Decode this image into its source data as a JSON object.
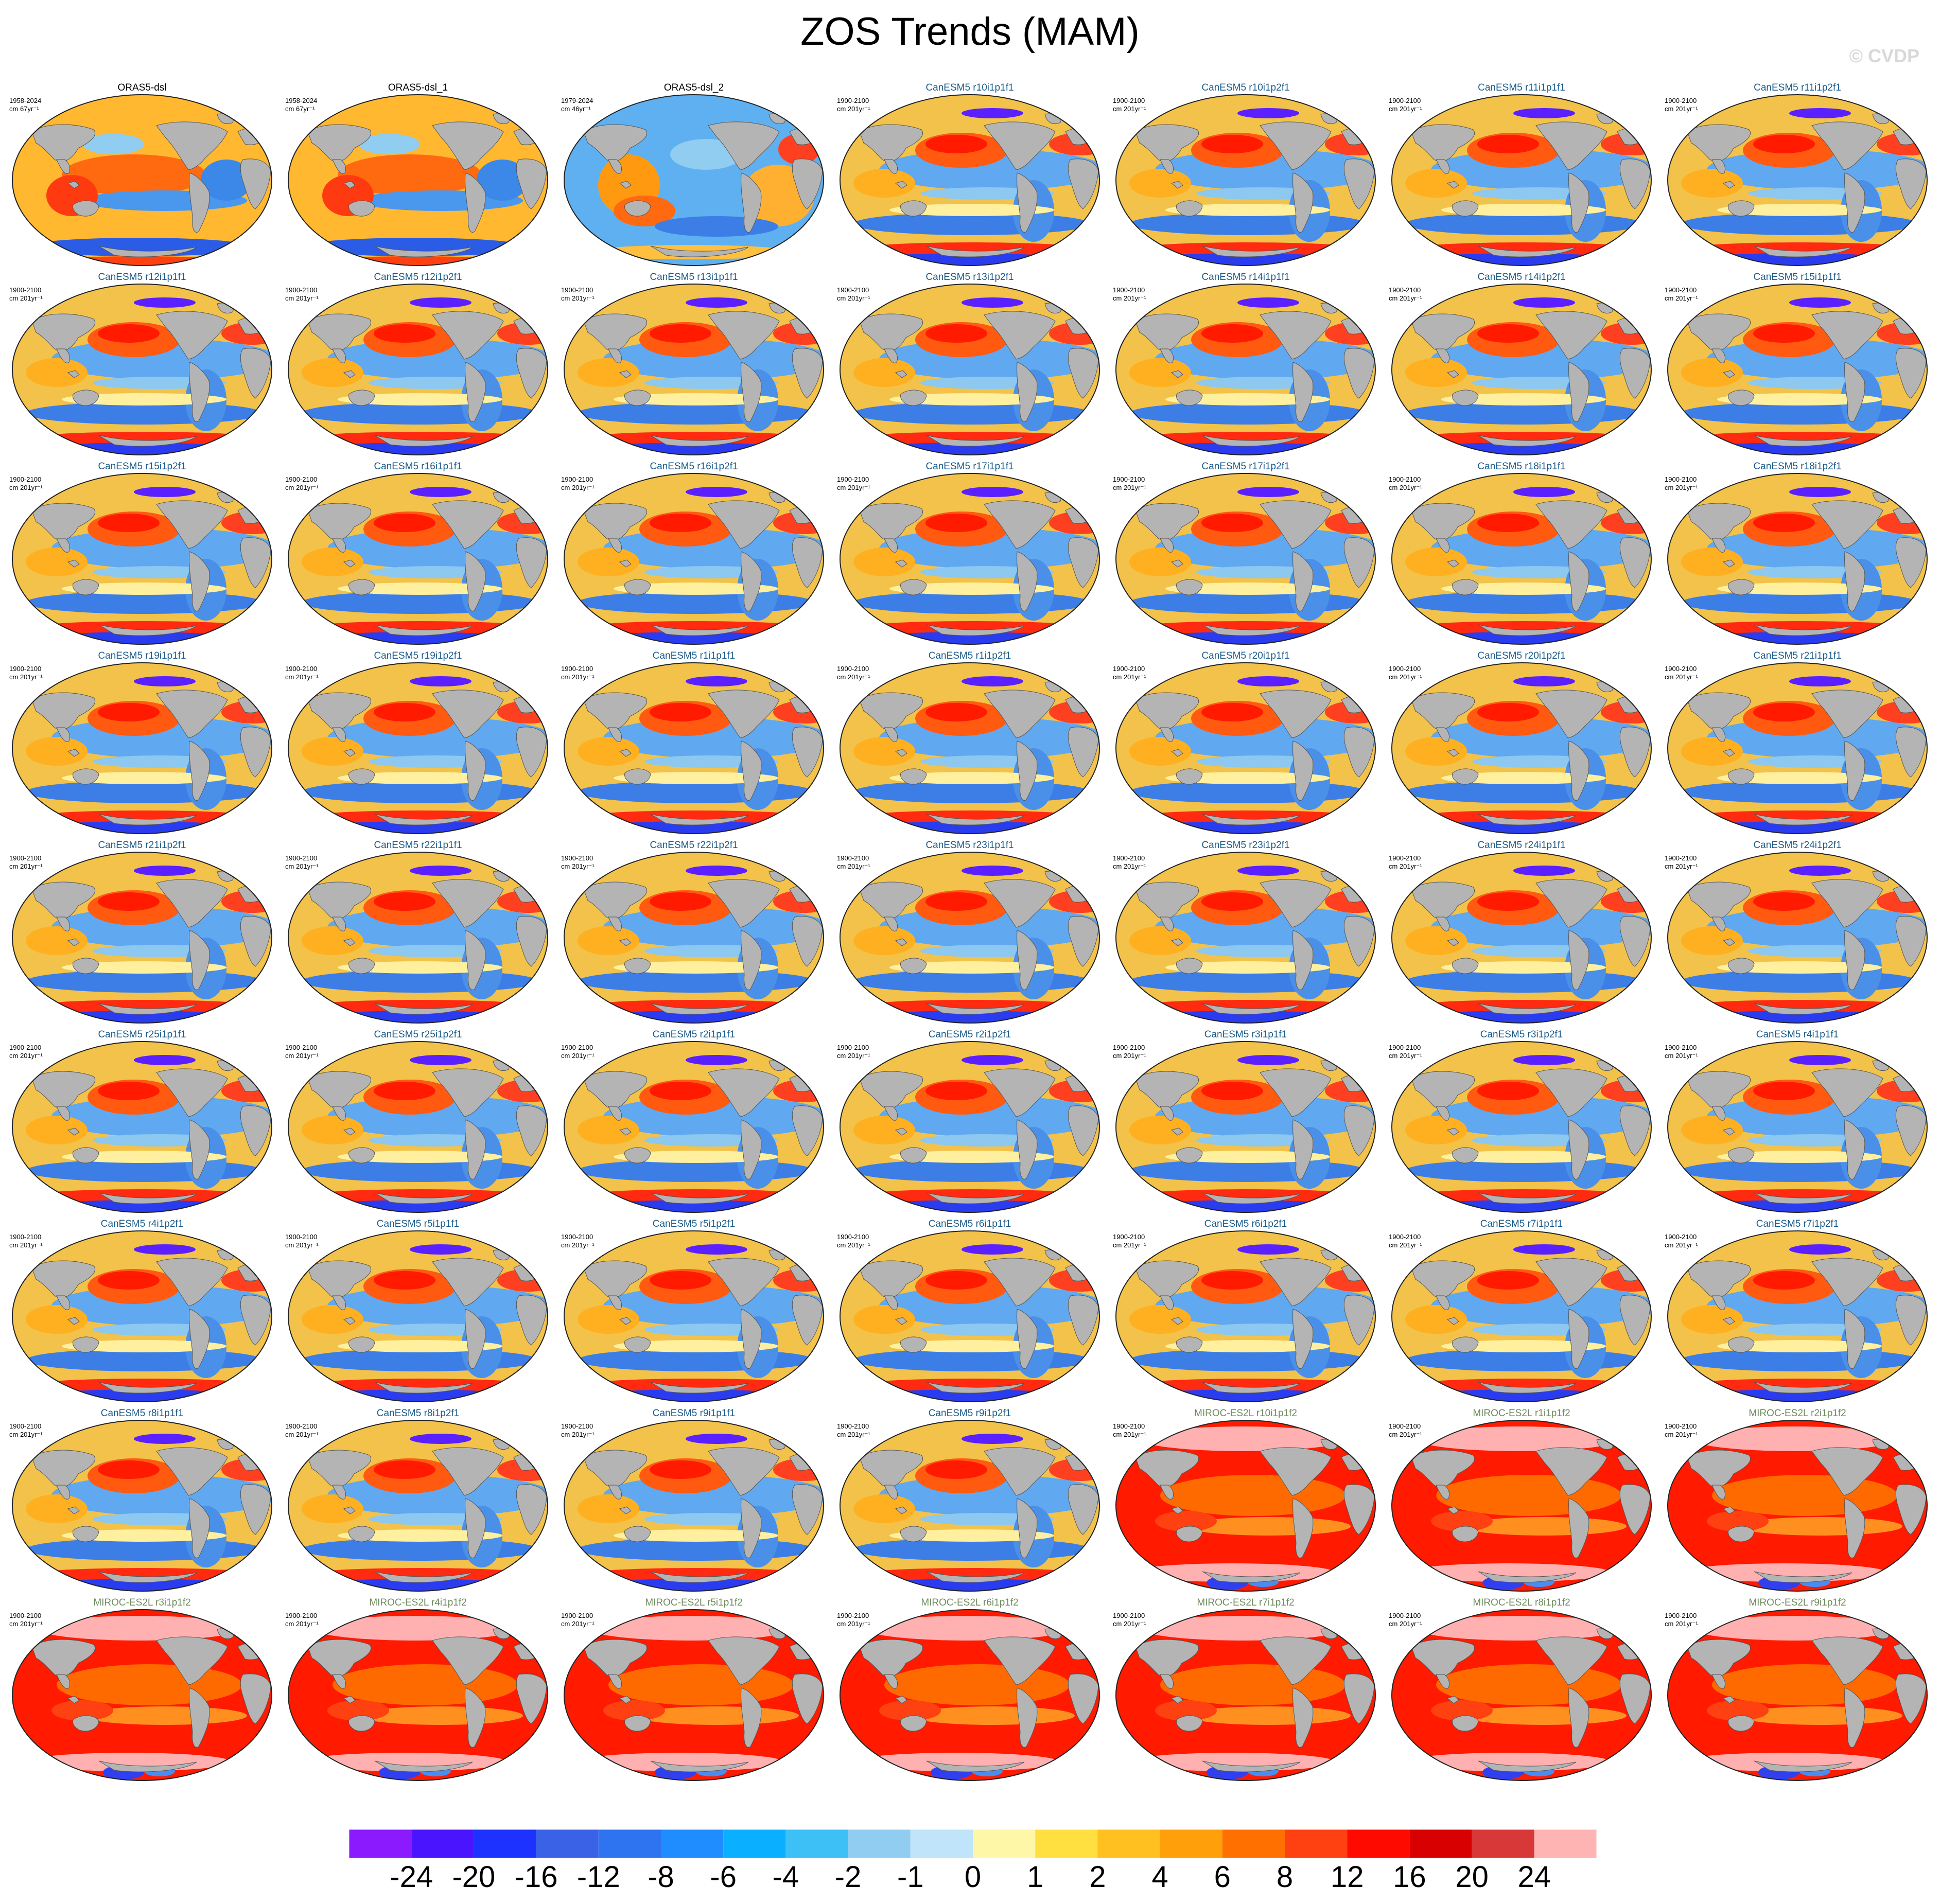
{
  "title": "ZOS Trends (MAM)",
  "watermark": "© CVDP",
  "colors": {
    "ocean_land": "#b4b4b4",
    "obs_title": "#000000",
    "canesm_title": "#1a5b8a",
    "miroc_title": "#6e8b5e"
  },
  "panels": [
    {
      "title": "ORAS5-dsl",
      "years": "1958-2024",
      "units": "cm 67yr⁻¹",
      "group": "obs",
      "pattern": "obs"
    },
    {
      "title": "ORAS5-dsl_1",
      "years": "1958-2024",
      "units": "cm 67yr⁻¹",
      "group": "obs",
      "pattern": "obs"
    },
    {
      "title": "ORAS5-dsl_2",
      "years": "1979-2024",
      "units": "cm 46yr⁻¹",
      "group": "obs",
      "pattern": "obs2"
    },
    {
      "title": "CanESM5 r10i1p1f1",
      "years": "1900-2100",
      "units": "cm 201yr⁻¹",
      "group": "canesm",
      "pattern": "canesm"
    },
    {
      "title": "CanESM5 r10i1p2f1",
      "years": "1900-2100",
      "units": "cm 201yr⁻¹",
      "group": "canesm",
      "pattern": "canesm"
    },
    {
      "title": "CanESM5 r11i1p1f1",
      "years": "1900-2100",
      "units": "cm 201yr⁻¹",
      "group": "canesm",
      "pattern": "canesm"
    },
    {
      "title": "CanESM5 r11i1p2f1",
      "years": "1900-2100",
      "units": "cm 201yr⁻¹",
      "group": "canesm",
      "pattern": "canesm"
    },
    {
      "title": "CanESM5 r12i1p1f1",
      "years": "1900-2100",
      "units": "cm 201yr⁻¹",
      "group": "canesm",
      "pattern": "canesm"
    },
    {
      "title": "CanESM5 r12i1p2f1",
      "years": "1900-2100",
      "units": "cm 201yr⁻¹",
      "group": "canesm",
      "pattern": "canesm"
    },
    {
      "title": "CanESM5 r13i1p1f1",
      "years": "1900-2100",
      "units": "cm 201yr⁻¹",
      "group": "canesm",
      "pattern": "canesm"
    },
    {
      "title": "CanESM5 r13i1p2f1",
      "years": "1900-2100",
      "units": "cm 201yr⁻¹",
      "group": "canesm",
      "pattern": "canesm"
    },
    {
      "title": "CanESM5 r14i1p1f1",
      "years": "1900-2100",
      "units": "cm 201yr⁻¹",
      "group": "canesm",
      "pattern": "canesm"
    },
    {
      "title": "CanESM5 r14i1p2f1",
      "years": "1900-2100",
      "units": "cm 201yr⁻¹",
      "group": "canesm",
      "pattern": "canesm"
    },
    {
      "title": "CanESM5 r15i1p1f1",
      "years": "1900-2100",
      "units": "cm 201yr⁻¹",
      "group": "canesm",
      "pattern": "canesm"
    },
    {
      "title": "CanESM5 r15i1p2f1",
      "years": "1900-2100",
      "units": "cm 201yr⁻¹",
      "group": "canesm",
      "pattern": "canesm"
    },
    {
      "title": "CanESM5 r16i1p1f1",
      "years": "1900-2100",
      "units": "cm 201yr⁻¹",
      "group": "canesm",
      "pattern": "canesm"
    },
    {
      "title": "CanESM5 r16i1p2f1",
      "years": "1900-2100",
      "units": "cm 201yr⁻¹",
      "group": "canesm",
      "pattern": "canesm"
    },
    {
      "title": "CanESM5 r17i1p1f1",
      "years": "1900-2100",
      "units": "cm 201yr⁻¹",
      "group": "canesm",
      "pattern": "canesm"
    },
    {
      "title": "CanESM5 r17i1p2f1",
      "years": "1900-2100",
      "units": "cm 201yr⁻¹",
      "group": "canesm",
      "pattern": "canesm"
    },
    {
      "title": "CanESM5 r18i1p1f1",
      "years": "1900-2100",
      "units": "cm 201yr⁻¹",
      "group": "canesm",
      "pattern": "canesm"
    },
    {
      "title": "CanESM5 r18i1p2f1",
      "years": "1900-2100",
      "units": "cm 201yr⁻¹",
      "group": "canesm",
      "pattern": "canesm"
    },
    {
      "title": "CanESM5 r19i1p1f1",
      "years": "1900-2100",
      "units": "cm 201yr⁻¹",
      "group": "canesm",
      "pattern": "canesm"
    },
    {
      "title": "CanESM5 r19i1p2f1",
      "years": "1900-2100",
      "units": "cm 201yr⁻¹",
      "group": "canesm",
      "pattern": "canesm"
    },
    {
      "title": "CanESM5 r1i1p1f1",
      "years": "1900-2100",
      "units": "cm 201yr⁻¹",
      "group": "canesm",
      "pattern": "canesm"
    },
    {
      "title": "CanESM5 r1i1p2f1",
      "years": "1900-2100",
      "units": "cm 201yr⁻¹",
      "group": "canesm",
      "pattern": "canesm"
    },
    {
      "title": "CanESM5 r20i1p1f1",
      "years": "1900-2100",
      "units": "cm 201yr⁻¹",
      "group": "canesm",
      "pattern": "canesm"
    },
    {
      "title": "CanESM5 r20i1p2f1",
      "years": "1900-2100",
      "units": "cm 201yr⁻¹",
      "group": "canesm",
      "pattern": "canesm"
    },
    {
      "title": "CanESM5 r21i1p1f1",
      "years": "1900-2100",
      "units": "cm 201yr⁻¹",
      "group": "canesm",
      "pattern": "canesm"
    },
    {
      "title": "CanESM5 r21i1p2f1",
      "years": "1900-2100",
      "units": "cm 201yr⁻¹",
      "group": "canesm",
      "pattern": "canesm"
    },
    {
      "title": "CanESM5 r22i1p1f1",
      "years": "1900-2100",
      "units": "cm 201yr⁻¹",
      "group": "canesm",
      "pattern": "canesm"
    },
    {
      "title": "CanESM5 r22i1p2f1",
      "years": "1900-2100",
      "units": "cm 201yr⁻¹",
      "group": "canesm",
      "pattern": "canesm"
    },
    {
      "title": "CanESM5 r23i1p1f1",
      "years": "1900-2100",
      "units": "cm 201yr⁻¹",
      "group": "canesm",
      "pattern": "canesm"
    },
    {
      "title": "CanESM5 r23i1p2f1",
      "years": "1900-2100",
      "units": "cm 201yr⁻¹",
      "group": "canesm",
      "pattern": "canesm"
    },
    {
      "title": "CanESM5 r24i1p1f1",
      "years": "1900-2100",
      "units": "cm 201yr⁻¹",
      "group": "canesm",
      "pattern": "canesm"
    },
    {
      "title": "CanESM5 r24i1p2f1",
      "years": "1900-2100",
      "units": "cm 201yr⁻¹",
      "group": "canesm",
      "pattern": "canesm"
    },
    {
      "title": "CanESM5 r25i1p1f1",
      "years": "1900-2100",
      "units": "cm 201yr⁻¹",
      "group": "canesm",
      "pattern": "canesm"
    },
    {
      "title": "CanESM5 r25i1p2f1",
      "years": "1900-2100",
      "units": "cm 201yr⁻¹",
      "group": "canesm",
      "pattern": "canesm"
    },
    {
      "title": "CanESM5 r2i1p1f1",
      "years": "1900-2100",
      "units": "cm 201yr⁻¹",
      "group": "canesm",
      "pattern": "canesm"
    },
    {
      "title": "CanESM5 r2i1p2f1",
      "years": "1900-2100",
      "units": "cm 201yr⁻¹",
      "group": "canesm",
      "pattern": "canesm"
    },
    {
      "title": "CanESM5 r3i1p1f1",
      "years": "1900-2100",
      "units": "cm 201yr⁻¹",
      "group": "canesm",
      "pattern": "canesm"
    },
    {
      "title": "CanESM5 r3i1p2f1",
      "years": "1900-2100",
      "units": "cm 201yr⁻¹",
      "group": "canesm",
      "pattern": "canesm"
    },
    {
      "title": "CanESM5 r4i1p1f1",
      "years": "1900-2100",
      "units": "cm 201yr⁻¹",
      "group": "canesm",
      "pattern": "canesm"
    },
    {
      "title": "CanESM5 r4i1p2f1",
      "years": "1900-2100",
      "units": "cm 201yr⁻¹",
      "group": "canesm",
      "pattern": "canesm"
    },
    {
      "title": "CanESM5 r5i1p1f1",
      "years": "1900-2100",
      "units": "cm 201yr⁻¹",
      "group": "canesm",
      "pattern": "canesm"
    },
    {
      "title": "CanESM5 r5i1p2f1",
      "years": "1900-2100",
      "units": "cm 201yr⁻¹",
      "group": "canesm",
      "pattern": "canesm"
    },
    {
      "title": "CanESM5 r6i1p1f1",
      "years": "1900-2100",
      "units": "cm 201yr⁻¹",
      "group": "canesm",
      "pattern": "canesm"
    },
    {
      "title": "CanESM5 r6i1p2f1",
      "years": "1900-2100",
      "units": "cm 201yr⁻¹",
      "group": "canesm",
      "pattern": "canesm"
    },
    {
      "title": "CanESM5 r7i1p1f1",
      "years": "1900-2100",
      "units": "cm 201yr⁻¹",
      "group": "canesm",
      "pattern": "canesm"
    },
    {
      "title": "CanESM5 r7i1p2f1",
      "years": "1900-2100",
      "units": "cm 201yr⁻¹",
      "group": "canesm",
      "pattern": "canesm"
    },
    {
      "title": "CanESM5 r8i1p1f1",
      "years": "1900-2100",
      "units": "cm 201yr⁻¹",
      "group": "canesm",
      "pattern": "canesm"
    },
    {
      "title": "CanESM5 r8i1p2f1",
      "years": "1900-2100",
      "units": "cm 201yr⁻¹",
      "group": "canesm",
      "pattern": "canesm"
    },
    {
      "title": "CanESM5 r9i1p1f1",
      "years": "1900-2100",
      "units": "cm 201yr⁻¹",
      "group": "canesm",
      "pattern": "canesm"
    },
    {
      "title": "CanESM5 r9i1p2f1",
      "years": "1900-2100",
      "units": "cm 201yr⁻¹",
      "group": "canesm",
      "pattern": "canesm"
    },
    {
      "title": "MIROC-ES2L r10i1p1f2",
      "years": "1900-2100",
      "units": "cm 201yr⁻¹",
      "group": "miroc",
      "pattern": "miroc"
    },
    {
      "title": "MIROC-ES2L r1i1p1f2",
      "years": "1900-2100",
      "units": "cm 201yr⁻¹",
      "group": "miroc",
      "pattern": "miroc"
    },
    {
      "title": "MIROC-ES2L r2i1p1f2",
      "years": "1900-2100",
      "units": "cm 201yr⁻¹",
      "group": "miroc",
      "pattern": "miroc"
    },
    {
      "title": "MIROC-ES2L r3i1p1f2",
      "years": "1900-2100",
      "units": "cm 201yr⁻¹",
      "group": "miroc",
      "pattern": "miroc"
    },
    {
      "title": "MIROC-ES2L r4i1p1f2",
      "years": "1900-2100",
      "units": "cm 201yr⁻¹",
      "group": "miroc",
      "pattern": "miroc"
    },
    {
      "title": "MIROC-ES2L r5i1p1f2",
      "years": "1900-2100",
      "units": "cm 201yr⁻¹",
      "group": "miroc",
      "pattern": "miroc"
    },
    {
      "title": "MIROC-ES2L r6i1p1f2",
      "years": "1900-2100",
      "units": "cm 201yr⁻¹",
      "group": "miroc",
      "pattern": "miroc"
    },
    {
      "title": "MIROC-ES2L r7i1p1f2",
      "years": "1900-2100",
      "units": "cm 201yr⁻¹",
      "group": "miroc",
      "pattern": "miroc"
    },
    {
      "title": "MIROC-ES2L r8i1p1f2",
      "years": "1900-2100",
      "units": "cm 201yr⁻¹",
      "group": "miroc",
      "pattern": "miroc"
    },
    {
      "title": "MIROC-ES2L r9i1p1f2",
      "years": "1900-2100",
      "units": "cm 201yr⁻¹",
      "group": "miroc",
      "pattern": "miroc"
    }
  ],
  "colorbar": {
    "colors": [
      "#8c1aff",
      "#4a14ff",
      "#1e32ff",
      "#3a62e6",
      "#2e73f0",
      "#1f8cff",
      "#0ab0ff",
      "#3cc0f5",
      "#90cdf0",
      "#c0e4fa",
      "#fff7a8",
      "#ffe040",
      "#ffc020",
      "#ff9f0a",
      "#ff7000",
      "#ff4010",
      "#ff0a00",
      "#d80000",
      "#d93838",
      "#ffb4b4"
    ],
    "labels": [
      "-24",
      "-20",
      "-16",
      "-12",
      "-8",
      "-6",
      "-4",
      "-2",
      "-1",
      "0",
      "1",
      "2",
      "4",
      "6",
      "8",
      "12",
      "16",
      "20",
      "24"
    ]
  }
}
